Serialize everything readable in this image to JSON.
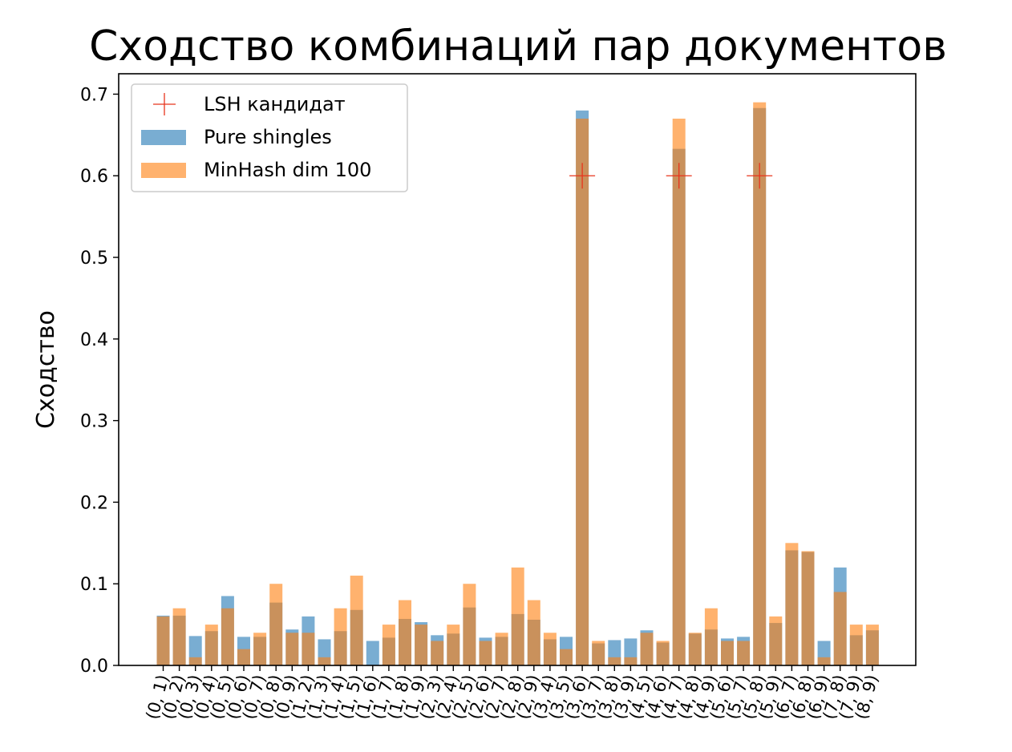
{
  "chart_data": {
    "type": "bar",
    "title": "Сходство комбинаций пар документов",
    "xlabel": "",
    "ylabel": "Сходство",
    "ylim": [
      0,
      0.725
    ],
    "yticks": [
      "0.0",
      "0.1",
      "0.2",
      "0.3",
      "0.4",
      "0.5",
      "0.6",
      "0.7"
    ],
    "grid": false,
    "legend_position": "top-left",
    "categories": [
      "(0, 1)",
      "(0, 2)",
      "(0, 3)",
      "(0, 4)",
      "(0, 5)",
      "(0, 6)",
      "(0, 7)",
      "(0, 8)",
      "(0, 9)",
      "(1, 2)",
      "(1, 3)",
      "(1, 4)",
      "(1, 5)",
      "(1, 6)",
      "(1, 7)",
      "(1, 8)",
      "(1, 9)",
      "(2, 3)",
      "(2, 4)",
      "(2, 5)",
      "(2, 6)",
      "(2, 7)",
      "(2, 8)",
      "(2, 9)",
      "(3, 4)",
      "(3, 5)",
      "(3, 6)",
      "(3, 7)",
      "(3, 8)",
      "(3, 9)",
      "(4, 5)",
      "(4, 6)",
      "(4, 7)",
      "(4, 8)",
      "(4, 9)",
      "(5, 6)",
      "(5, 7)",
      "(5, 8)",
      "(5, 9)",
      "(6, 7)",
      "(6, 8)",
      "(6, 9)",
      "(7, 8)",
      "(7, 9)",
      "(8, 9)"
    ],
    "series": [
      {
        "name": "Pure shingles",
        "color": "#1f77b4",
        "values": [
          0.061,
          0.061,
          0.036,
          0.042,
          0.085,
          0.035,
          0.035,
          0.077,
          0.044,
          0.06,
          0.032,
          0.042,
          0.068,
          0.03,
          0.034,
          0.057,
          0.053,
          0.037,
          0.039,
          0.071,
          0.034,
          0.035,
          0.063,
          0.056,
          0.032,
          0.035,
          0.68,
          0.027,
          0.031,
          0.033,
          0.043,
          0.028,
          0.633,
          0.039,
          0.044,
          0.033,
          0.035,
          0.683,
          0.052,
          0.141,
          0.139,
          0.03,
          0.12,
          0.037,
          0.043
        ]
      },
      {
        "name": "MinHash dim 100",
        "color": "#ff7f0e",
        "values": [
          0.06,
          0.07,
          0.01,
          0.05,
          0.07,
          0.02,
          0.04,
          0.1,
          0.04,
          0.04,
          0.01,
          0.07,
          0.11,
          0.0,
          0.05,
          0.08,
          0.05,
          0.03,
          0.05,
          0.1,
          0.03,
          0.04,
          0.12,
          0.08,
          0.04,
          0.02,
          0.67,
          0.03,
          0.01,
          0.01,
          0.04,
          0.03,
          0.67,
          0.04,
          0.07,
          0.03,
          0.03,
          0.69,
          0.06,
          0.15,
          0.14,
          0.01,
          0.09,
          0.05,
          0.05
        ]
      }
    ],
    "markers": {
      "name": "LSH кандидат",
      "color": "#e8341c",
      "symbol": "+",
      "points": [
        {
          "category": "(3, 6)",
          "y": 0.6
        },
        {
          "category": "(4, 7)",
          "y": 0.6
        },
        {
          "category": "(5, 8)",
          "y": 0.6
        }
      ]
    }
  }
}
